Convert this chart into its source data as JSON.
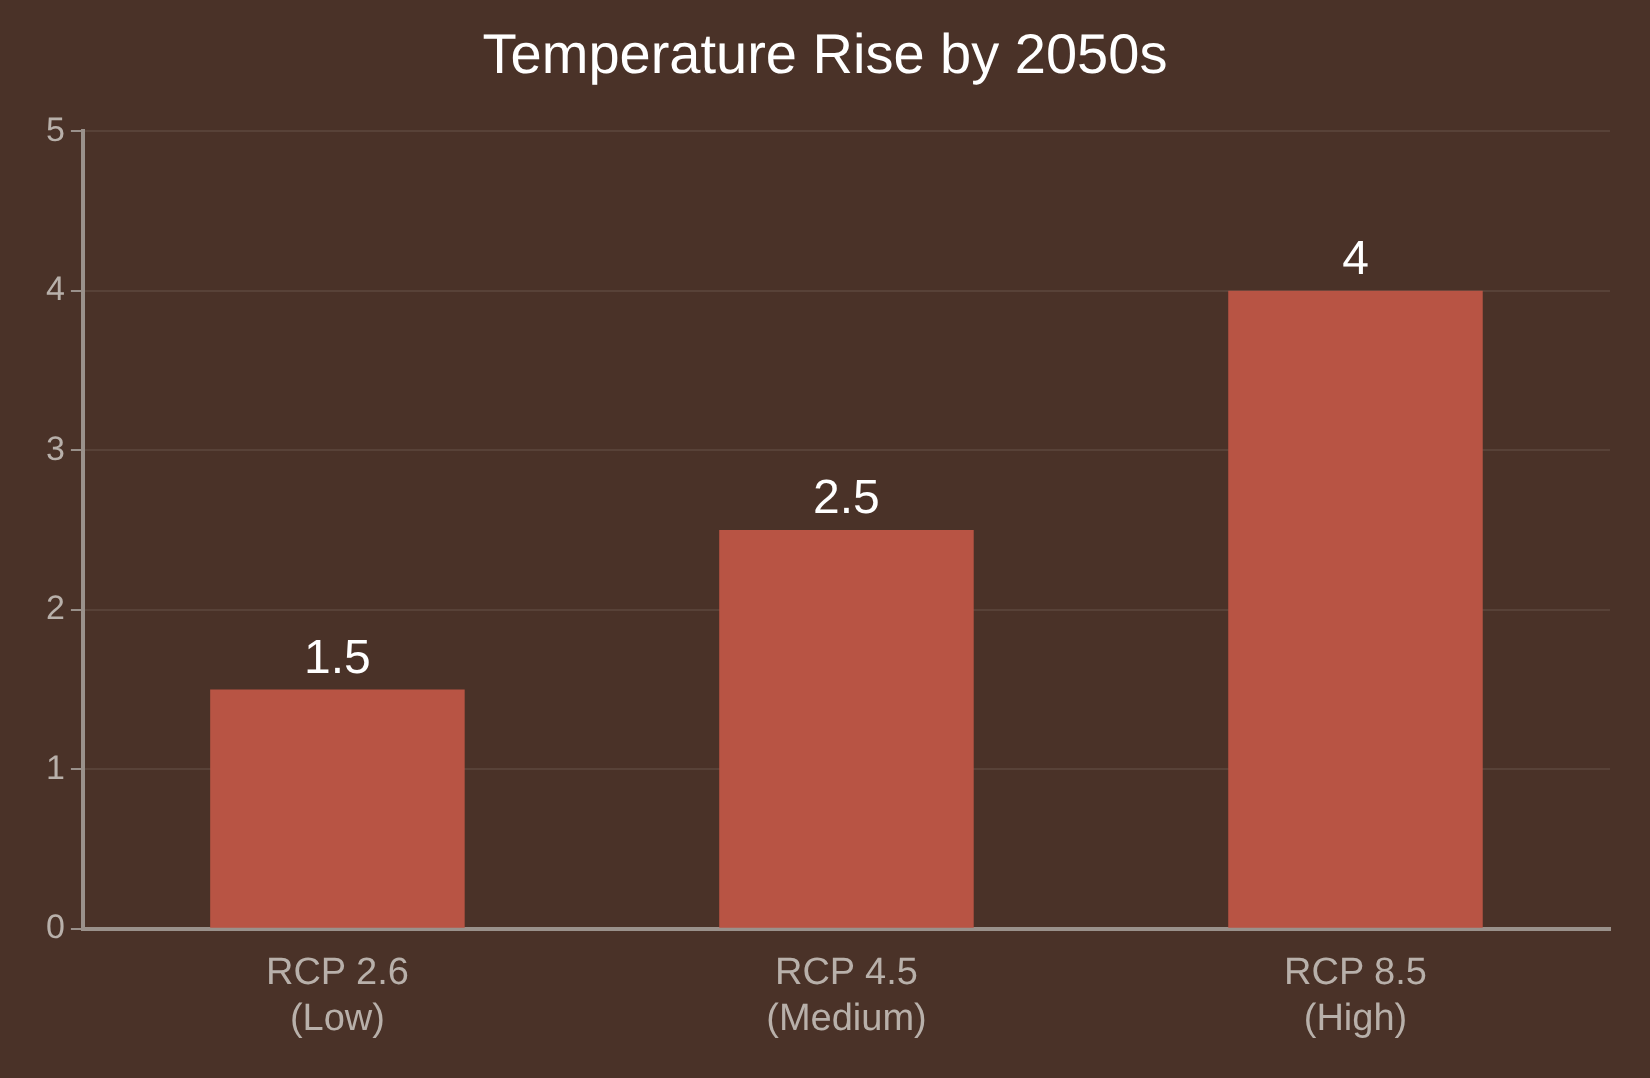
{
  "chart_data": {
    "type": "bar",
    "title": "Temperature Rise by 2050s",
    "categories": [
      "RCP 2.6\n(Low)",
      "RCP 4.5\n(Medium)",
      "RCP 8.5\n(High)"
    ],
    "values": [
      1.5,
      2.5,
      4
    ],
    "color": "#b85444",
    "ylim": [
      0,
      5
    ],
    "yticks": [
      0,
      1,
      2,
      3,
      4,
      5
    ],
    "grid": "y",
    "data_labels": true,
    "legend": false
  }
}
